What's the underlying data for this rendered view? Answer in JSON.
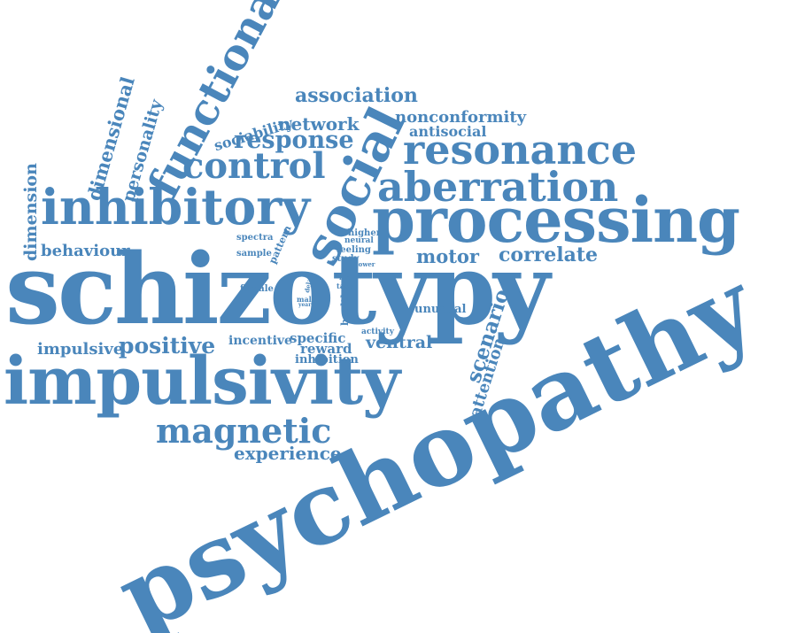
{
  "color": "#4a86bb",
  "words": [
    {
      "id": "psychopathy",
      "text": "psychopathy"
    },
    {
      "id": "schizotypy",
      "text": "schizotypy"
    },
    {
      "id": "impulsivity",
      "text": "impulsivity"
    },
    {
      "id": "processing",
      "text": "processing"
    },
    {
      "id": "inhibitory",
      "text": "inhibitory"
    },
    {
      "id": "social",
      "text": "social"
    },
    {
      "id": "functional",
      "text": "functional"
    },
    {
      "id": "resonance",
      "text": "resonance"
    },
    {
      "id": "aberration",
      "text": "aberration"
    },
    {
      "id": "control",
      "text": "control"
    },
    {
      "id": "magnetic",
      "text": "magnetic"
    },
    {
      "id": "response",
      "text": "response"
    },
    {
      "id": "positive",
      "text": "positive"
    },
    {
      "id": "association",
      "text": "association"
    },
    {
      "id": "network",
      "text": "network"
    },
    {
      "id": "nonconformity",
      "text": "nonconformity"
    },
    {
      "id": "antisocial",
      "text": "antisocial"
    },
    {
      "id": "sociability",
      "text": "sociability"
    },
    {
      "id": "dimensional",
      "text": "dimensional"
    },
    {
      "id": "personality",
      "text": "personality"
    },
    {
      "id": "dimension",
      "text": "dimension"
    },
    {
      "id": "behaviour",
      "text": "behaviour"
    },
    {
      "id": "motor",
      "text": "motor"
    },
    {
      "id": "correlate",
      "text": "correlate"
    },
    {
      "id": "experience",
      "text": "experience"
    },
    {
      "id": "scenario",
      "text": "scenario"
    },
    {
      "id": "attention",
      "text": "attention"
    },
    {
      "id": "impulsive",
      "text": "impulsive"
    },
    {
      "id": "incentive",
      "text": "incentive"
    },
    {
      "id": "specific",
      "text": "specific"
    },
    {
      "id": "reward",
      "text": "reward"
    },
    {
      "id": "inhibition",
      "text": "inhibition"
    },
    {
      "id": "ventral",
      "text": "ventral"
    },
    {
      "id": "unusual",
      "text": "unusual"
    },
    {
      "id": "activity",
      "text": "activity"
    },
    {
      "id": "healthy",
      "text": "healthy"
    },
    {
      "id": "pattern",
      "text": "pattern"
    },
    {
      "id": "spectra",
      "text": "spectra"
    },
    {
      "id": "sample",
      "text": "sample"
    },
    {
      "id": "female",
      "text": "female"
    },
    {
      "id": "higher",
      "text": "higher"
    },
    {
      "id": "neural",
      "text": "neural"
    },
    {
      "id": "feeling",
      "text": "feeling"
    },
    {
      "id": "study",
      "text": "study"
    },
    {
      "id": "lower",
      "text": "lower"
    },
    {
      "id": "life",
      "text": "life"
    },
    {
      "id": "task",
      "text": "task"
    },
    {
      "id": "delay",
      "text": "delay"
    },
    {
      "id": "male",
      "text": "male"
    },
    {
      "id": "year",
      "text": "year"
    }
  ]
}
